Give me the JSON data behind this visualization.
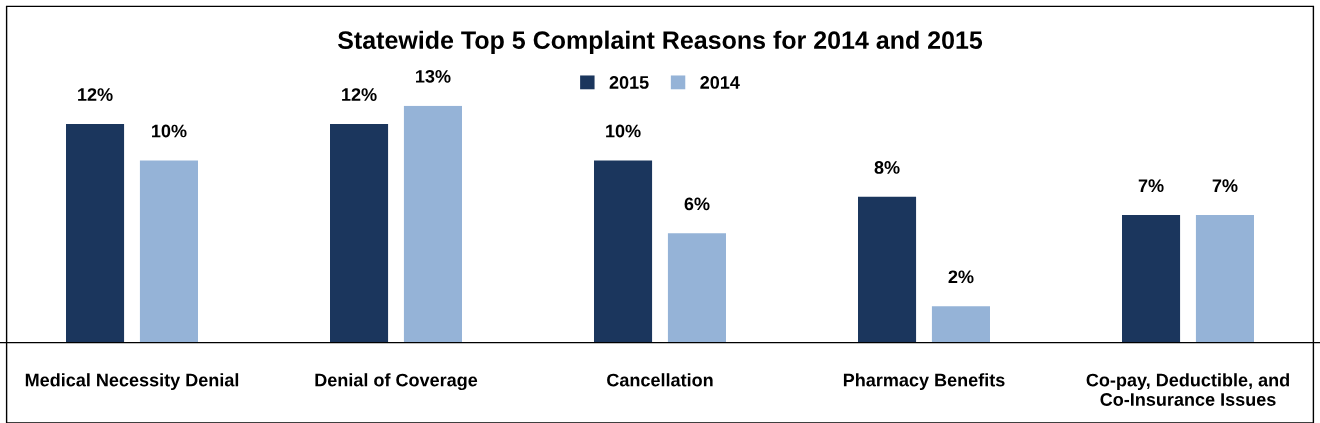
{
  "chart_data": {
    "type": "bar",
    "title": "Statewide Top 5 Complaint Reasons for 2014 and 2015",
    "categories": [
      "Medical Necessity Denial",
      "Denial of Coverage",
      "Cancellation",
      "Pharmacy Benefits",
      "Co-pay, Deductible, and\nCo-Insurance Issues"
    ],
    "series": [
      {
        "name": "2015",
        "color": "#1b365d",
        "values": [
          12,
          12,
          10,
          8,
          7
        ],
        "value_labels": [
          "12%",
          "12%",
          "10%",
          "8%",
          "7%"
        ]
      },
      {
        "name": "2014",
        "color": "#95b3d7",
        "values": [
          10,
          13,
          6,
          2,
          7
        ],
        "value_labels": [
          "10%",
          "13%",
          "6%",
          "2%",
          "7%"
        ]
      }
    ],
    "legend": "top",
    "grid": false
  }
}
